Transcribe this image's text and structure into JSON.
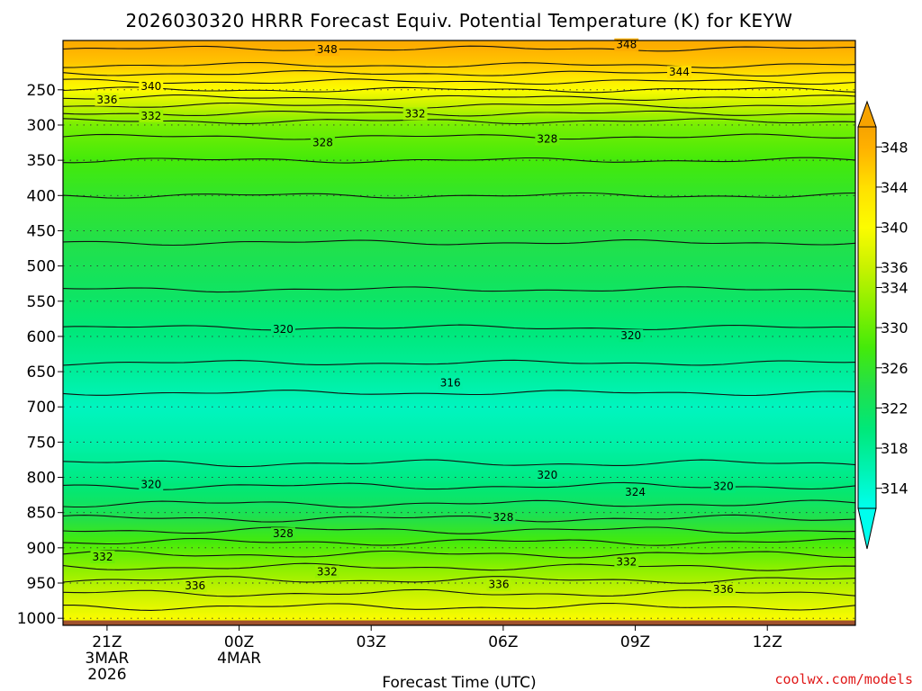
{
  "chart_data": {
    "type": "heatmap",
    "title": "2026030320 HRRR Forecast Equiv. Potential Temperature (K) for KEYW",
    "xlabel": "Forecast Time (UTC)",
    "ylabel": "",
    "credit": "coolwx.com/models",
    "x_range_hours": [
      -1,
      17
    ],
    "y_range_hpa": [
      180,
      1010
    ],
    "x_ticks": [
      {
        "hour": 0,
        "label": "21Z",
        "sub1": "3MAR",
        "sub2": "2026"
      },
      {
        "hour": 3,
        "label": "00Z",
        "sub1": "4MAR",
        "sub2": ""
      },
      {
        "hour": 6,
        "label": "03Z",
        "sub1": "",
        "sub2": ""
      },
      {
        "hour": 9,
        "label": "06Z",
        "sub1": "",
        "sub2": ""
      },
      {
        "hour": 12,
        "label": "09Z",
        "sub1": "",
        "sub2": ""
      },
      {
        "hour": 15,
        "label": "12Z",
        "sub1": "",
        "sub2": ""
      }
    ],
    "y_ticks": [
      {
        "value": 250,
        "label": "250"
      },
      {
        "value": 300,
        "label": "300"
      },
      {
        "value": 350,
        "label": "350"
      },
      {
        "value": 400,
        "label": "400"
      },
      {
        "value": 450,
        "label": "450"
      },
      {
        "value": 500,
        "label": "500"
      },
      {
        "value": 550,
        "label": "550"
      },
      {
        "value": 600,
        "label": "600"
      },
      {
        "value": 650,
        "label": "650"
      },
      {
        "value": 700,
        "label": "700"
      },
      {
        "value": 750,
        "label": "750"
      },
      {
        "value": 800,
        "label": "800"
      },
      {
        "value": 850,
        "label": "850"
      },
      {
        "value": 900,
        "label": "900"
      },
      {
        "value": 950,
        "label": "950"
      },
      {
        "value": 1000,
        "label": "1000"
      }
    ],
    "ground_hpa": 1003,
    "ground_color": "#a0522d",
    "colorbar": {
      "min": 312,
      "max": 350,
      "labels": [
        "348",
        "344",
        "340",
        "336",
        "334",
        "330",
        "326",
        "322",
        "318",
        "314"
      ],
      "label_values": [
        348,
        344,
        340,
        336,
        334,
        330,
        326,
        322,
        318,
        314
      ],
      "stops": [
        {
          "v": 312,
          "c": "#00ffee"
        },
        {
          "v": 316,
          "c": "#00f2b0"
        },
        {
          "v": 320,
          "c": "#00e878"
        },
        {
          "v": 324,
          "c": "#22e04a"
        },
        {
          "v": 328,
          "c": "#44ea0a"
        },
        {
          "v": 332,
          "c": "#88f000"
        },
        {
          "v": 336,
          "c": "#c8f200"
        },
        {
          "v": 340,
          "c": "#fcfc00"
        },
        {
          "v": 344,
          "c": "#ffe000"
        },
        {
          "v": 348,
          "c": "#ffb000"
        },
        {
          "v": 350,
          "c": "#f7a300"
        }
      ]
    },
    "profile": [
      {
        "p": 180,
        "v": 349
      },
      {
        "p": 215,
        "v": 346
      },
      {
        "p": 250,
        "v": 340
      },
      {
        "p": 300,
        "v": 331
      },
      {
        "p": 350,
        "v": 328
      },
      {
        "p": 400,
        "v": 326
      },
      {
        "p": 450,
        "v": 324.5
      },
      {
        "p": 500,
        "v": 323
      },
      {
        "p": 550,
        "v": 321.5
      },
      {
        "p": 600,
        "v": 319.5
      },
      {
        "p": 650,
        "v": 317.5
      },
      {
        "p": 700,
        "v": 315
      },
      {
        "p": 750,
        "v": 316.5
      },
      {
        "p": 800,
        "v": 319
      },
      {
        "p": 850,
        "v": 323
      },
      {
        "p": 900,
        "v": 329
      },
      {
        "p": 950,
        "v": 334.5
      },
      {
        "p": 1003,
        "v": 340
      }
    ],
    "contour_labels": [
      {
        "text": "348",
        "hour": 5.0,
        "p": 193
      },
      {
        "text": "348",
        "hour": 11.8,
        "p": 186
      },
      {
        "text": "344",
        "hour": 13.0,
        "p": 225
      },
      {
        "text": "340",
        "hour": 1.0,
        "p": 245
      },
      {
        "text": "336",
        "hour": 0.0,
        "p": 264
      },
      {
        "text": "332",
        "hour": 1.0,
        "p": 287
      },
      {
        "text": "332",
        "hour": 7.0,
        "p": 284
      },
      {
        "text": "328",
        "hour": 4.9,
        "p": 325
      },
      {
        "text": "328",
        "hour": 10.0,
        "p": 320
      },
      {
        "text": "320",
        "hour": 4.0,
        "p": 590
      },
      {
        "text": "320",
        "hour": 11.9,
        "p": 599
      },
      {
        "text": "316",
        "hour": 7.8,
        "p": 666
      },
      {
        "text": "320",
        "hour": 10.0,
        "p": 797
      },
      {
        "text": "320",
        "hour": 1.0,
        "p": 810
      },
      {
        "text": "320",
        "hour": 14.0,
        "p": 813
      },
      {
        "text": "324",
        "hour": 12.0,
        "p": 821
      },
      {
        "text": "328",
        "hour": 9.0,
        "p": 857
      },
      {
        "text": "328",
        "hour": 4.0,
        "p": 880
      },
      {
        "text": "332",
        "hour": -0.1,
        "p": 913
      },
      {
        "text": "332",
        "hour": 5.0,
        "p": 934
      },
      {
        "text": "332",
        "hour": 11.8,
        "p": 920
      },
      {
        "text": "336",
        "hour": 2.0,
        "p": 954
      },
      {
        "text": "336",
        "hour": 8.9,
        "p": 952
      },
      {
        "text": "336",
        "hour": 14.0,
        "p": 959
      }
    ]
  }
}
